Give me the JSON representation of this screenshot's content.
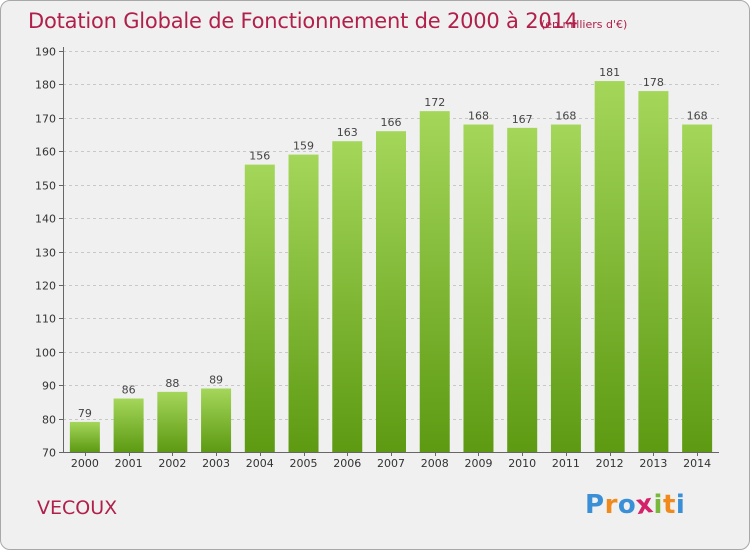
{
  "header": {
    "title": "Dotation Globale de Fonctionnement de 2000 à 2014",
    "subtitle": "(en milliers d'€)"
  },
  "footer": {
    "commune": "VECOUX",
    "logo": {
      "text": "Proxiti",
      "letters": [
        "P",
        "r",
        "o",
        "x",
        "i",
        "t",
        "i"
      ],
      "colors": [
        "#3a8fd6",
        "#f08a1c",
        "#3a8fd6",
        "#d4226a",
        "#7ab83c",
        "#f08a1c",
        "#3a8fd6"
      ]
    }
  },
  "colors": {
    "bar_top": "#a4d65a",
    "bar_bottom": "#5d9a12",
    "title": "#b0204a",
    "grid": "#c8c8c8"
  },
  "chart_data": {
    "type": "bar",
    "title": "Dotation Globale de Fonctionnement de 2000 à 2014",
    "subtitle": "(en milliers d'€)",
    "categories": [
      "2000",
      "2001",
      "2002",
      "2003",
      "2004",
      "2005",
      "2006",
      "2007",
      "2008",
      "2009",
      "2010",
      "2011",
      "2012",
      "2013",
      "2014"
    ],
    "values": [
      79,
      86,
      88,
      89,
      156,
      159,
      163,
      166,
      172,
      168,
      167,
      168,
      181,
      178,
      168
    ],
    "ylim": [
      70,
      190
    ],
    "yticks": [
      70,
      80,
      90,
      100,
      110,
      120,
      130,
      140,
      150,
      160,
      170,
      180,
      190
    ],
    "grid": true,
    "xlabel": "",
    "ylabel": ""
  }
}
